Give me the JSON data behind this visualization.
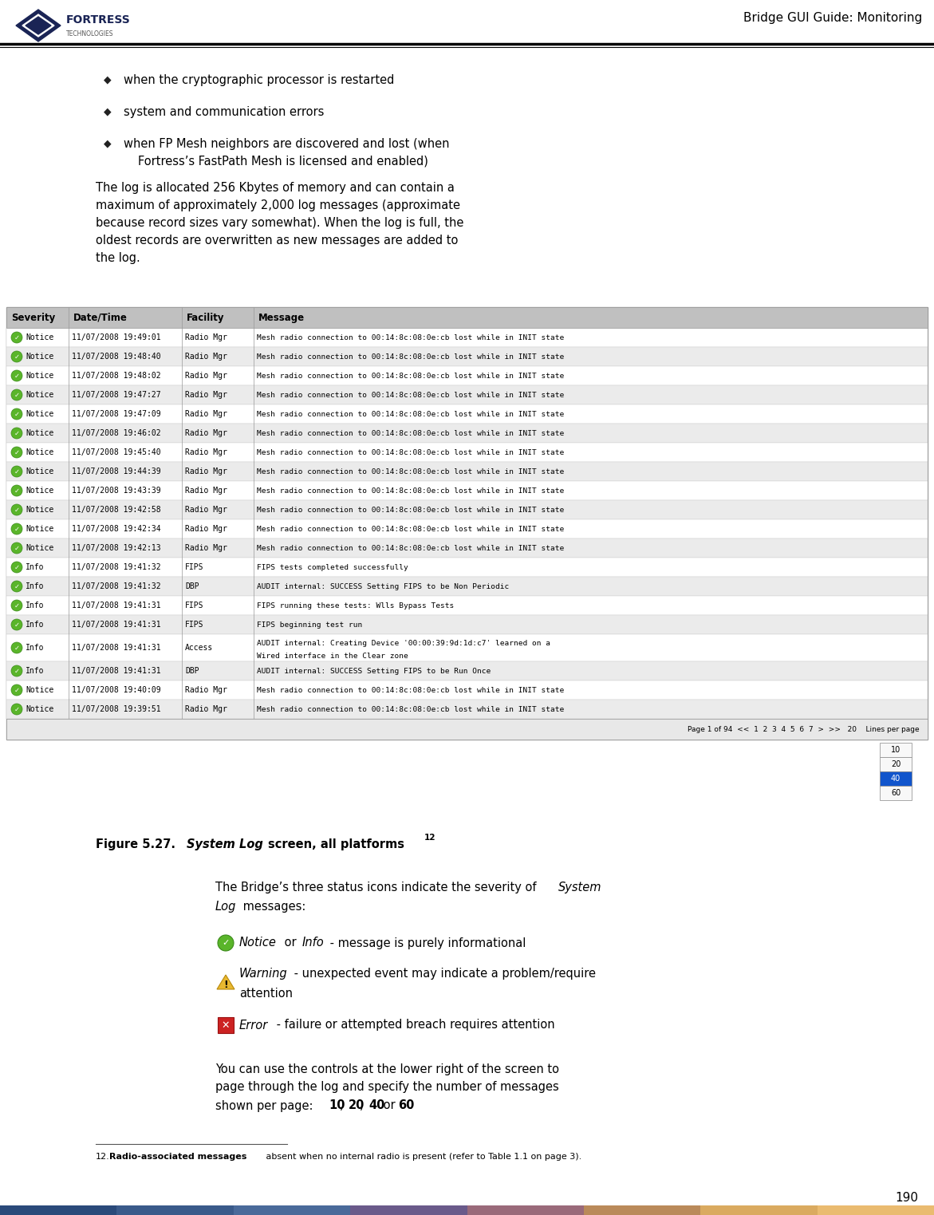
{
  "page_title": "Bridge GUI Guide: Monitoring",
  "page_number": "190",
  "bg_color": "#ffffff",
  "bullet_char": "◆",
  "bullet_items": [
    "when the cryptographic processor is restarted",
    "system and communication errors",
    "when FP Mesh neighbors are discovered and lost (when\nFortress’s FastPath Mesh is licensed and enabled)"
  ],
  "paragraph1": "The log is allocated 256 Kbytes of memory and can contain a\nmaximum of approximately 2,000 log messages (approximate\nbecause record sizes vary somewhat). When the log is full, the\noldest records are overwritten as new messages are added to\nthe log.",
  "icon_notice_color": "#5ab52a",
  "icon_warning_color": "#e8b830",
  "icon_error_color": "#cc2222",
  "table_header_cols": [
    "Severity",
    "Date/Time",
    "Facility",
    "Message"
  ],
  "table_rows": [
    [
      "Notice",
      "11/07/2008 19:49:01",
      "Radio Mgr",
      "Mesh radio connection to 00:14:8c:08:0e:cb lost while in INIT state"
    ],
    [
      "Notice",
      "11/07/2008 19:48:40",
      "Radio Mgr",
      "Mesh radio connection to 00:14:8c:08:0e:cb lost while in INIT state"
    ],
    [
      "Notice",
      "11/07/2008 19:48:02",
      "Radio Mgr",
      "Mesh radio connection to 00:14:8c:08:0e:cb lost while in INIT state"
    ],
    [
      "Notice",
      "11/07/2008 19:47:27",
      "Radio Mgr",
      "Mesh radio connection to 00:14:8c:08:0e:cb lost while in INIT state"
    ],
    [
      "Notice",
      "11/07/2008 19:47:09",
      "Radio Mgr",
      "Mesh radio connection to 00:14:8c:08:0e:cb lost while in INIT state"
    ],
    [
      "Notice",
      "11/07/2008 19:46:02",
      "Radio Mgr",
      "Mesh radio connection to 00:14:8c:08:0e:cb lost while in INIT state"
    ],
    [
      "Notice",
      "11/07/2008 19:45:40",
      "Radio Mgr",
      "Mesh radio connection to 00:14:8c:08:0e:cb lost while in INIT state"
    ],
    [
      "Notice",
      "11/07/2008 19:44:39",
      "Radio Mgr",
      "Mesh radio connection to 00:14:8c:08:0e:cb lost while in INIT state"
    ],
    [
      "Notice",
      "11/07/2008 19:43:39",
      "Radio Mgr",
      "Mesh radio connection to 00:14:8c:08:0e:cb lost while in INIT state"
    ],
    [
      "Notice",
      "11/07/2008 19:42:58",
      "Radio Mgr",
      "Mesh radio connection to 00:14:8c:08:0e:cb lost while in INIT state"
    ],
    [
      "Notice",
      "11/07/2008 19:42:34",
      "Radio Mgr",
      "Mesh radio connection to 00:14:8c:08:0e:cb lost while in INIT state"
    ],
    [
      "Notice",
      "11/07/2008 19:42:13",
      "Radio Mgr",
      "Mesh radio connection to 00:14:8c:08:0e:cb lost while in INIT state"
    ],
    [
      "Info",
      "11/07/2008 19:41:32",
      "FIPS",
      "FIPS tests completed successfully"
    ],
    [
      "Info",
      "11/07/2008 19:41:32",
      "DBP",
      "AUDIT internal: SUCCESS Setting FIPS to be Non Periodic"
    ],
    [
      "Info",
      "11/07/2008 19:41:31",
      "FIPS",
      "FIPS running these tests: Wlls Bypass Tests"
    ],
    [
      "Info",
      "11/07/2008 19:41:31",
      "FIPS",
      "FIPS beginning test run"
    ],
    [
      "Info",
      "11/07/2008 19:41:31",
      "Access",
      "AUDIT internal: Creating Device '00:00:39:9d:1d:c7' learned on a\nWired interface in the Clear zone"
    ],
    [
      "Info",
      "11/07/2008 19:41:31",
      "DBP",
      "AUDIT internal: SUCCESS Setting FIPS to be Run Once"
    ],
    [
      "Notice",
      "11/07/2008 19:40:09",
      "Radio Mgr",
      "Mesh radio connection to 00:14:8c:08:0e:cb lost while in INIT state"
    ],
    [
      "Notice",
      "11/07/2008 19:39:51",
      "Radio Mgr",
      "Mesh radio connection to 00:14:8c:08:0e:cb lost while in INIT state"
    ]
  ],
  "footer_bar_colors": [
    "#2a4a7a",
    "#3a5a8a",
    "#4a6a9a",
    "#6a5a8a",
    "#9a6a7a",
    "#ba8a5a",
    "#daaa60",
    "#eabb70"
  ]
}
